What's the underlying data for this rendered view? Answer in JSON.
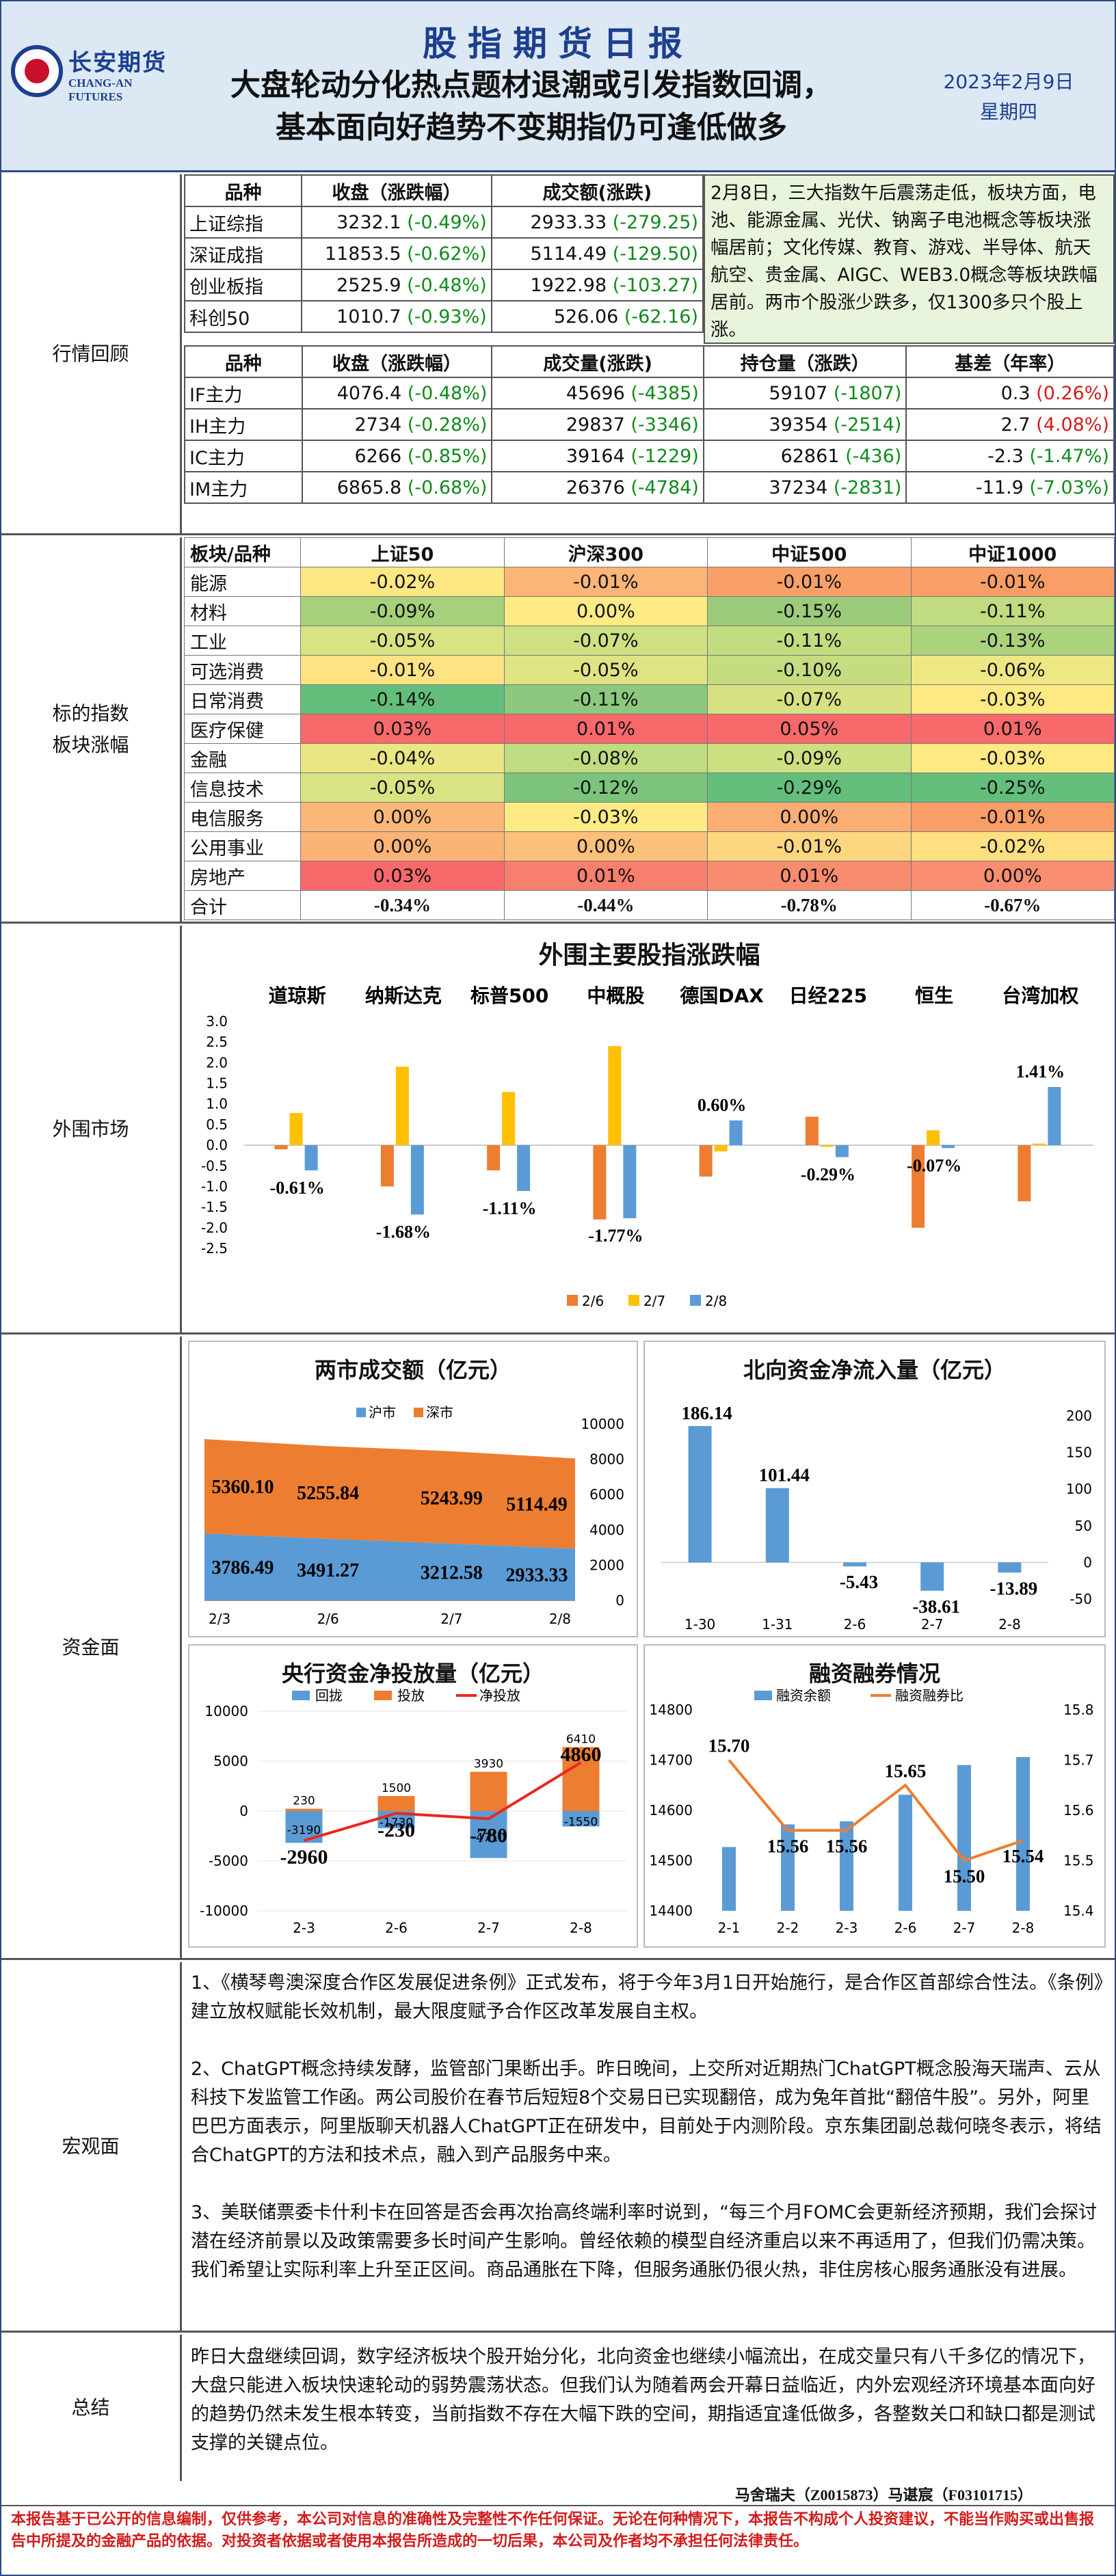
{
  "header": {
    "logo_cn": "长安期货",
    "logo_en": "CHANG-AN FUTURES",
    "title": "股指期货日报",
    "headline_1": "大盘轮动分化热点题材退潮或引发指数回调，",
    "headline_2": "基本面向好趋势不变期指仍可逢低做多",
    "date": "2023年2月9日",
    "weekday": "星期四"
  },
  "sections": {
    "review": "行情回顾",
    "heat_1": "标的指数",
    "heat_2": "板块涨幅",
    "overseas": "外围市场",
    "funds": "资金面",
    "macro": "宏观面",
    "summary": "总结"
  },
  "review": {
    "index_headers": [
      "品种",
      "收盘（涨跌幅）",
      "成交额(涨跌)"
    ],
    "index_rows": [
      {
        "name": "上证综指",
        "close": "3232.1",
        "chg": "(-0.49%)",
        "amt": "2933.33",
        "amt_chg": "(-279.25)"
      },
      {
        "name": "深证成指",
        "close": "11853.5",
        "chg": "(-0.62%)",
        "amt": "5114.49",
        "amt_chg": "(-129.50)"
      },
      {
        "name": "创业板指",
        "close": "2525.9",
        "chg": "(-0.48%)",
        "amt": "1922.98",
        "amt_chg": "(-103.27)"
      },
      {
        "name": "科创50",
        "close": "1010.7",
        "chg": "(-0.93%)",
        "amt": "526.06",
        "amt_chg": "(-62.16)"
      }
    ],
    "text": "2月8日，三大指数午后震荡走低，板块方面，电池、能源金属、光伏、钠离子电池概念等板块涨幅居前；文化传媒、教育、游戏、半导体、航天航空、贵金属、AIGC、WEB3.0概念等板块跌幅居前。两市个股涨少跌多，仅1300多只个股上涨。",
    "fut_headers": [
      "品种",
      "收盘（涨跌幅）",
      "成交量(涨跌)",
      "持仓量（涨跌）",
      "基差（年率）"
    ],
    "fut_rows": [
      {
        "name": "IF主力",
        "close": "4076.4",
        "chg": "(-0.48%)",
        "vol": "45696",
        "vol_chg": "(-4385)",
        "oi": "59107",
        "oi_chg": "(-1807)",
        "basis": "0.3",
        "rate": "(0.26%)",
        "rate_color": "r"
      },
      {
        "name": "IH主力",
        "close": "2734",
        "chg": "(-0.28%)",
        "vol": "29837",
        "vol_chg": "(-3346)",
        "oi": "39354",
        "oi_chg": "(-2514)",
        "basis": "2.7",
        "rate": "(4.08%)",
        "rate_color": "r"
      },
      {
        "name": "IC主力",
        "close": "6266",
        "chg": "(-0.85%)",
        "vol": "39164",
        "vol_chg": "(-1229)",
        "oi": "62861",
        "oi_chg": "(-436)",
        "basis": "-2.3",
        "rate": "(-1.47%)",
        "rate_color": "g"
      },
      {
        "name": "IM主力",
        "close": "6865.8",
        "chg": "(-0.68%)",
        "vol": "26376",
        "vol_chg": "(-4784)",
        "oi": "37234",
        "oi_chg": "(-2831)",
        "basis": "-11.9",
        "rate": "(-7.03%)",
        "rate_color": "g"
      }
    ]
  },
  "heat": {
    "headers": [
      "板块/品种",
      "上证50",
      "沪深300",
      "中证500",
      "中证1000"
    ],
    "rows": [
      {
        "name": "能源",
        "vals": [
          "-0.02%",
          "-0.01%",
          "-0.01%",
          "-0.01%"
        ],
        "colors": [
          "#fde884",
          "#fbb577",
          "#f9a068",
          "#f99e67"
        ]
      },
      {
        "name": "材料",
        "vals": [
          "-0.09%",
          "0.00%",
          "-0.15%",
          "-0.11%"
        ],
        "colors": [
          "#a6d07c",
          "#ffec84",
          "#9ccc7b",
          "#c0db80"
        ]
      },
      {
        "name": "工业",
        "vals": [
          "-0.05%",
          "-0.07%",
          "-0.11%",
          "-0.13%"
        ],
        "colors": [
          "#d8e383",
          "#cfe082",
          "#c2dc80",
          "#abd27d"
        ]
      },
      {
        "name": "可选消费",
        "vals": [
          "-0.01%",
          "-0.05%",
          "-0.10%",
          "-0.06%"
        ],
        "colors": [
          "#fee383",
          "#dee482",
          "#c5dd80",
          "#ede884"
        ]
      },
      {
        "name": "日常消费",
        "vals": [
          "-0.14%",
          "-0.11%",
          "-0.07%",
          "-0.03%"
        ],
        "colors": [
          "#63be7b",
          "#8cc87d",
          "#d6e282",
          "#fee983"
        ]
      },
      {
        "name": "医疗保健",
        "vals": [
          "0.03%",
          "0.01%",
          "0.05%",
          "0.01%"
        ],
        "colors": [
          "#f8696b",
          "#f8696b",
          "#f8696b",
          "#f8696b"
        ]
      },
      {
        "name": "金融",
        "vals": [
          "-0.04%",
          "-0.08%",
          "-0.09%",
          "-0.03%"
        ],
        "colors": [
          "#e9e683",
          "#c0db80",
          "#cde081",
          "#fee983"
        ]
      },
      {
        "name": "信息技术",
        "vals": [
          "-0.05%",
          "-0.12%",
          "-0.29%",
          "-0.25%"
        ],
        "colors": [
          "#d8e383",
          "#7cc47c",
          "#63be7b",
          "#63be7b"
        ]
      },
      {
        "name": "电信服务",
        "vals": [
          "0.00%",
          "-0.03%",
          "0.00%",
          "-0.01%"
        ],
        "colors": [
          "#fbb778",
          "#ffeb84",
          "#fbae73",
          "#f99e67"
        ]
      },
      {
        "name": "公用事业",
        "vals": [
          "0.00%",
          "0.00%",
          "-0.01%",
          "-0.02%"
        ],
        "colors": [
          "#fbb377",
          "#fcc07a",
          "#fdd780",
          "#fee081"
        ]
      },
      {
        "name": "房地产",
        "vals": [
          "0.03%",
          "0.01%",
          "0.01%",
          "0.00%"
        ],
        "colors": [
          "#f8696b",
          "#f87e6e",
          "#f98b6f",
          "#f98e70"
        ]
      }
    ],
    "total_label": "合计",
    "totals": [
      "-0.34%",
      "-0.44%",
      "-0.78%",
      "-0.67%"
    ]
  },
  "overseas": {
    "title": "外围主要股指涨跌幅",
    "chart_data": {
      "type": "bar",
      "title": "外围主要股指涨跌幅",
      "categories": [
        "道琼斯",
        "纳斯达克",
        "标普500",
        "中概股",
        "德国DAX",
        "日经225",
        "恒生",
        "台湾加权"
      ],
      "series": [
        {
          "name": "2/6",
          "values": [
            -0.1,
            -1.0,
            -0.61,
            -1.8,
            -0.76,
            0.69,
            -2.0,
            -1.36
          ],
          "color": "#ed7d31"
        },
        {
          "name": "2/7",
          "values": [
            0.78,
            1.9,
            1.29,
            2.4,
            -0.15,
            -0.04,
            0.36,
            0.04
          ],
          "color": "#ffc000"
        },
        {
          "name": "2/8",
          "values": [
            -0.61,
            -1.68,
            -1.11,
            -1.77,
            0.6,
            -0.29,
            -0.07,
            1.41
          ],
          "color": "#5b9bd5"
        }
      ],
      "data_labels": [
        "-0.61%",
        "-1.68%",
        "-1.11%",
        "-1.77%",
        "0.60%",
        "-0.29%",
        "-0.07%",
        "1.41%"
      ],
      "ylim": [
        -2.5,
        3.0
      ],
      "yticks": [
        "3.0",
        "2.5",
        "2.0",
        "1.5",
        "1.0",
        "0.5",
        "0.0",
        "-0.5",
        "-1.0",
        "-1.5",
        "-2.0",
        "-2.5"
      ],
      "legend": "bottom"
    }
  },
  "funds": {
    "turnover": {
      "title": "两市成交额（亿元）",
      "chart_data": {
        "type": "area",
        "title": "两市成交额（亿元）",
        "categories": [
          "2/3",
          "2/6",
          "2/7",
          "2/8"
        ],
        "series": [
          {
            "name": "沪市",
            "values": [
              3786.49,
              3491.27,
              3212.58,
              2933.33
            ],
            "labels": [
              "3786.49",
              "3491.27",
              "3212.58",
              "2933.33"
            ],
            "color": "#5b9bd5"
          },
          {
            "name": "深市",
            "values": [
              5360.1,
              5255.84,
              5243.99,
              5114.49
            ],
            "labels": [
              "5360.10",
              "5255.84",
              "5243.99",
              "5114.49"
            ],
            "color": "#ed7d31"
          }
        ],
        "ylim": [
          0,
          10000
        ],
        "yticks": [
          "10000",
          "8000",
          "6000",
          "4000",
          "2000",
          "0"
        ],
        "stacked": true,
        "legend": "top"
      }
    },
    "northbound": {
      "title": "北向资金净流入量（亿元）",
      "chart_data": {
        "type": "bar",
        "title": "北向资金净流入量（亿元）",
        "categories": [
          "1-30",
          "1-31",
          "2-6",
          "2-7",
          "2-8"
        ],
        "values": [
          186.14,
          101.44,
          -5.43,
          -38.61,
          -13.89
        ],
        "labels": [
          "186.14",
          "101.44",
          "-5.43",
          "-38.61",
          "-13.89"
        ],
        "ylim": [
          -50,
          200
        ],
        "yticks": [
          "200",
          "150",
          "100",
          "50",
          "0",
          "-50"
        ],
        "color": "#5b9bd5"
      }
    },
    "pboc": {
      "title": "央行资金净投放量（亿元）",
      "chart_data": {
        "type": "bar",
        "title": "央行资金净投放量（亿元）",
        "categories": [
          "2-3",
          "2-6",
          "2-7",
          "2-8"
        ],
        "series": [
          {
            "name": "回拢",
            "values": [
              -3190,
              -1730,
              -4710,
              -1550
            ],
            "labels": [
              "-3190",
              "-1730",
              "-4710",
              "-1550"
            ],
            "color": "#5b9bd5"
          },
          {
            "name": "投放",
            "values": [
              230,
              1500,
              3930,
              6410
            ],
            "labels": [
              "230",
              "1500",
              "3930",
              "6410"
            ],
            "color": "#ed7d31"
          },
          {
            "name": "净投放",
            "values": [
              -2960,
              -230,
              -780,
              4860
            ],
            "labels": [
              "-2960",
              "-230",
              "-780",
              "4860"
            ],
            "color": "#e8281e"
          }
        ],
        "ylim": [
          -10000,
          10000
        ],
        "yticks": [
          "10000",
          "5000",
          "0",
          "-5000",
          "-10000"
        ],
        "legend": "top"
      }
    },
    "margin": {
      "title": "融资融券情况",
      "chart_data": {
        "type": "bar",
        "title": "融资融券情况",
        "categories": [
          "2-1",
          "2-2",
          "2-3",
          "2-6",
          "2-7",
          "2-8"
        ],
        "series": [
          {
            "name": "融资余额",
            "values": [
              14527,
              14572,
              14578,
              14631,
              14690,
              14706
            ],
            "color": "#5b9bd5",
            "axis": "left"
          },
          {
            "name": "融资融券比",
            "values": [
              15.7,
              15.56,
              15.56,
              15.65,
              15.5,
              15.54
            ],
            "labels": [
              "15.70",
              "15.56",
              "15.56",
              "15.65",
              "15.50",
              "15.54"
            ],
            "color": "#ed7d31",
            "axis": "right"
          }
        ],
        "ylim_left": [
          14400,
          14800
        ],
        "ylim_right": [
          15.4,
          15.8
        ],
        "yticks_left": [
          "14800",
          "14700",
          "14600",
          "14500",
          "14400"
        ],
        "yticks_right": [
          "15.8",
          "15.7",
          "15.6",
          "15.5",
          "15.4"
        ],
        "legend": "top"
      }
    }
  },
  "macro": {
    "p1": "1、《横琴粤澳深度合作区发展促进条例》正式发布，将于今年3月1日开始施行，是合作区首部综合性法。《条例》建立放权赋能长效机制，最大限度赋予合作区改革发展自主权。",
    "p2": "2、ChatGPT概念持续发酵，监管部门果断出手。昨日晚间，上交所对近期热门ChatGPT概念股海天瑞声、云从科技下发监管工作函。两公司股价在春节后短短8个交易日已实现翻倍，成为兔年首批“翻倍牛股”。另外，阿里巴巴方面表示，阿里版聊天机器人ChatGPT正在研发中，目前处于内测阶段。京东集团副总裁何晓冬表示，将结合ChatGPT的方法和技术点，融入到产品服务中来。",
    "p3": "3、美联储票委卡什利卡在回答是否会再次抬高终端利率时说到，“每三个月FOMC会更新经济预期，我们会探讨潜在经济前景以及政策需要多长时间产生影响。曾经依赖的模型自经济重启以来不再适用了，但我们仍需决策。我们希望让实际利率上升至正区间。商品通胀在下降，但服务通胀仍很火热，非住房核心服务通胀没有进展。"
  },
  "summary": {
    "text": "昨日大盘继续回调，数字经济板块个股开始分化，北向资金也继续小幅流出，在成交量只有八千多亿的情况下，大盘只能进入板块快速轮动的弱势震荡状态。但我们认为随着两会开幕日益临近，内外宏观经济环境基本面向好的趋势仍然未发生根本转变，当前指数不存在大幅下跌的空间，期指适宜逢低做多，各整数关口和缺口都是测试支撑的关键点位。"
  },
  "footer": {
    "authors": "马舍瑞夫（Z0015873）马谌宸（F03101715）",
    "disclaimer": "本报告基于已公开的信息编制，仅供参考，本公司对信息的准确性及完整性不作任何保证。无论在何种情况下，本报告不构成个人投资建议，不能当作购买或出售报告中所提及的金融产品的依据。对投资者依据或者使用本报告所造成的一切后果，本公司及作者均不承担任何法律责任。"
  }
}
